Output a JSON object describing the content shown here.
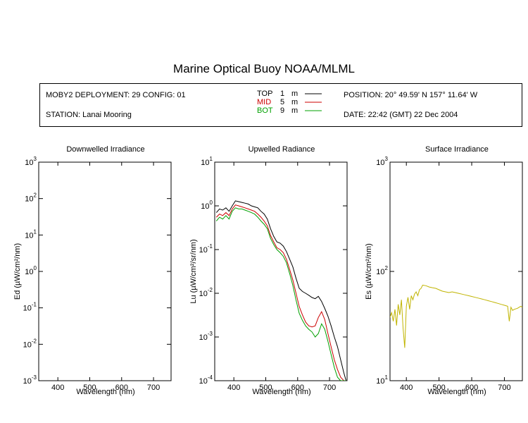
{
  "title": "Marine Optical Buoy NOAA/MLML",
  "info": {
    "deployment": "MOBY2 DEPLOYMENT: 29 CONFIG: 01",
    "station": "STATION: Lanai Mooring",
    "position": "POSITION: 20° 49.59' N   157° 11.64' W",
    "date": "DATE: 22:42 (GMT) 22 Dec 2004",
    "legend": [
      {
        "name": "TOP",
        "depth": "1",
        "unit": "m",
        "color": "#000000"
      },
      {
        "name": "MID",
        "depth": "5",
        "unit": "m",
        "color": "#cc0000"
      },
      {
        "name": "BOT",
        "depth": "9",
        "unit": "m",
        "color": "#00a000"
      }
    ]
  },
  "chart_data": [
    {
      "type": "line",
      "title": "Downwelled Irradiance",
      "xlabel": "Wavelength (nm)",
      "ylabel": "Ed  (µW/cm²/nm)",
      "xlim": [
        340,
        755
      ],
      "ylim_log10": [
        -3,
        3
      ],
      "xticks": [
        400,
        500,
        600,
        700
      ],
      "yticks_exp": [
        -3,
        -2,
        -1,
        0,
        1,
        2,
        3
      ],
      "log_y": true,
      "series": []
    },
    {
      "type": "line",
      "title": "Upwelled Radiance",
      "xlabel": "Wavelength (nm)",
      "ylabel": "Lu  (µW/cm²/sr/nm)",
      "xlim": [
        340,
        755
      ],
      "ylim_log10": [
        -4,
        1
      ],
      "xticks": [
        400,
        500,
        600,
        700
      ],
      "yticks_exp": [
        -4,
        -3,
        -2,
        -1,
        0,
        1
      ],
      "log_y": true,
      "series": [
        {
          "color": "#000000",
          "x": [
            345,
            355,
            365,
            375,
            385,
            395,
            405,
            415,
            425,
            435,
            445,
            455,
            465,
            475,
            485,
            495,
            505,
            515,
            525,
            535,
            545,
            555,
            565,
            575,
            585,
            595,
            605,
            615,
            625,
            635,
            645,
            655,
            665,
            675,
            685,
            695,
            705,
            715,
            725,
            735,
            745,
            752
          ],
          "y": [
            0.7,
            0.85,
            0.8,
            0.9,
            0.75,
            1.0,
            1.3,
            1.25,
            1.2,
            1.15,
            1.1,
            1.0,
            0.95,
            0.9,
            0.75,
            0.65,
            0.5,
            0.3,
            0.2,
            0.15,
            0.14,
            0.12,
            0.09,
            0.06,
            0.04,
            0.022,
            0.013,
            0.011,
            0.01,
            0.009,
            0.008,
            0.0075,
            0.0085,
            0.0065,
            0.0045,
            0.003,
            0.0018,
            0.001,
            0.0006,
            0.0003,
            0.00015,
            0.0001
          ]
        },
        {
          "color": "#cc0000",
          "x": [
            345,
            355,
            365,
            375,
            385,
            395,
            405,
            415,
            425,
            435,
            445,
            455,
            465,
            475,
            485,
            495,
            505,
            515,
            525,
            535,
            545,
            555,
            565,
            575,
            585,
            595,
            605,
            615,
            625,
            635,
            645,
            655,
            665,
            675,
            685,
            695,
            705,
            715,
            725,
            735,
            745,
            752
          ],
          "y": [
            0.55,
            0.65,
            0.6,
            0.7,
            0.6,
            0.85,
            1.05,
            1.0,
            0.95,
            0.9,
            0.85,
            0.8,
            0.75,
            0.65,
            0.55,
            0.45,
            0.35,
            0.21,
            0.15,
            0.11,
            0.1,
            0.085,
            0.06,
            0.035,
            0.02,
            0.01,
            0.005,
            0.0032,
            0.0022,
            0.0018,
            0.0017,
            0.0018,
            0.0028,
            0.0038,
            0.0025,
            0.0012,
            0.0006,
            0.0003,
            0.00018,
            0.00012,
            0.0001,
            0.0001
          ]
        },
        {
          "color": "#00a000",
          "x": [
            345,
            355,
            365,
            375,
            385,
            395,
            405,
            415,
            425,
            435,
            445,
            455,
            465,
            475,
            485,
            495,
            505,
            515,
            525,
            535,
            545,
            555,
            565,
            575,
            585,
            595,
            605,
            615,
            625,
            635,
            645,
            655,
            665,
            675,
            685,
            695,
            705,
            715,
            725,
            735,
            745,
            752
          ],
          "y": [
            0.45,
            0.55,
            0.5,
            0.6,
            0.5,
            0.75,
            0.9,
            0.85,
            0.85,
            0.8,
            0.75,
            0.7,
            0.65,
            0.55,
            0.45,
            0.38,
            0.3,
            0.18,
            0.13,
            0.1,
            0.085,
            0.07,
            0.05,
            0.028,
            0.015,
            0.007,
            0.0035,
            0.0024,
            0.0018,
            0.0015,
            0.0013,
            0.001,
            0.0012,
            0.002,
            0.0015,
            0.0008,
            0.0004,
            0.0002,
            0.00012,
            0.0001,
            0.0001,
            0.0001
          ]
        }
      ]
    },
    {
      "type": "line",
      "title": "Surface Irradiance",
      "xlabel": "Wavelength (nm)",
      "ylabel": "Es  (µW/cm²/nm)",
      "xlim": [
        350,
        755
      ],
      "ylim_log10": [
        1,
        3
      ],
      "xticks": [
        400,
        500,
        600,
        700
      ],
      "yticks_exp": [
        1,
        2,
        3
      ],
      "log_y": true,
      "series": [
        {
          "color": "#c0b400",
          "x": [
            350,
            355,
            360,
            365,
            370,
            375,
            380,
            385,
            390,
            395,
            400,
            405,
            410,
            415,
            420,
            425,
            430,
            435,
            440,
            445,
            450,
            460,
            470,
            480,
            490,
            500,
            510,
            520,
            530,
            540,
            550,
            560,
            570,
            580,
            590,
            600,
            610,
            620,
            630,
            640,
            650,
            660,
            670,
            680,
            690,
            700,
            710,
            715,
            720,
            725,
            730,
            740,
            750,
            755
          ],
          "y": [
            38,
            42,
            35,
            45,
            32,
            50,
            40,
            55,
            30,
            20,
            48,
            58,
            45,
            60,
            55,
            62,
            65,
            60,
            68,
            70,
            75,
            74,
            72,
            71,
            70,
            68,
            66,
            65,
            64,
            65,
            64,
            63,
            62,
            61,
            60,
            59,
            58,
            57,
            56,
            55,
            54,
            53,
            52,
            51,
            50,
            49,
            48,
            35,
            47,
            44,
            45,
            46,
            48,
            47
          ]
        }
      ]
    }
  ]
}
